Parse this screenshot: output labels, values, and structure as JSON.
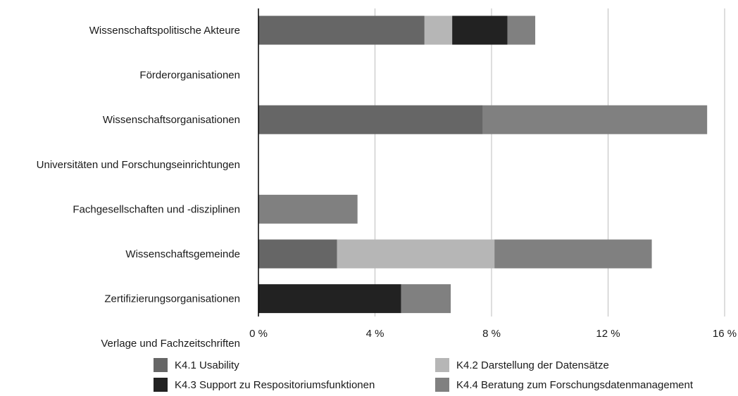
{
  "chart_data": {
    "type": "bar",
    "orientation": "horizontal",
    "stacked": true,
    "categories": [
      "Wissenschaftspolitische Akteure",
      "Förderorganisationen",
      "Wissenschaftsorganisationen",
      "Universitäten und Forschungseinrichtungen",
      "Fachgesellschaften und -disziplinen",
      "Wissenschaftsgemeinde",
      "Zertifizierungsorganisationen",
      "Verlage und Fachzeitschriften"
    ],
    "series": [
      {
        "name": "K4.1 Usability",
        "color": "#666666",
        "values": [
          5.7,
          0,
          7.7,
          0,
          0,
          2.7,
          0,
          0
        ]
      },
      {
        "name": "K4.2 Darstellung der Datensätze",
        "color": "#b6b6b6",
        "values": [
          0.95,
          0,
          0,
          0,
          0,
          5.4,
          0,
          0
        ]
      },
      {
        "name": "K4.3 Support zu Respositoriumsfunktionen",
        "color": "#222222",
        "values": [
          1.9,
          0,
          0,
          0,
          0,
          0,
          4.9,
          0
        ]
      },
      {
        "name": "K4.4 Beratung zum Forschungsdatenmanagement",
        "color": "#808080",
        "values": [
          0.95,
          0,
          7.7,
          0,
          3.4,
          5.4,
          1.7,
          0
        ]
      }
    ],
    "xlim": [
      0,
      16
    ],
    "xticks": [
      0,
      4,
      8,
      12,
      16
    ],
    "xtick_labels": [
      "0 %",
      "4 %",
      "8 %",
      "12 %",
      "16 %"
    ],
    "grid": "vertical",
    "legend_position": "bottom",
    "title": "",
    "xlabel": "",
    "ylabel": ""
  }
}
